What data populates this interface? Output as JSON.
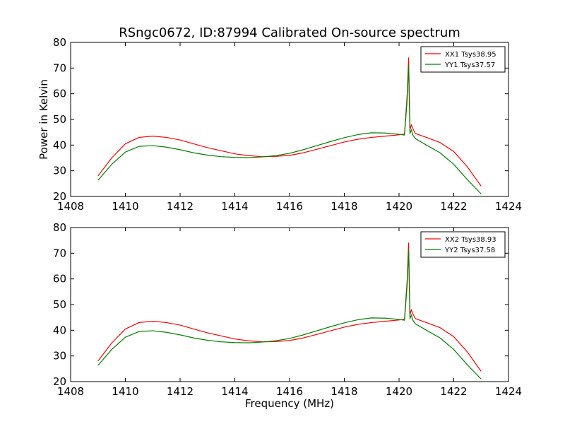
{
  "figure": {
    "title": "RSngc0672, ID:87994 Calibrated On-source spectrum",
    "xlabel": "Frequency (MHz)"
  },
  "chart_data": [
    {
      "type": "line",
      "title": "RSngc0672, ID:87994 Calibrated On-source spectrum",
      "xlabel": "",
      "ylabel": "Power in Kelvin",
      "xlim": [
        1408,
        1424
      ],
      "ylim": [
        20,
        80
      ],
      "xticks": [
        "1408",
        "1410",
        "1412",
        "1414",
        "1416",
        "1418",
        "1420",
        "1422",
        "1424"
      ],
      "yticks": [
        "20",
        "30",
        "40",
        "50",
        "60",
        "70",
        "80"
      ],
      "grid": false,
      "legend_position": "top-right",
      "x": [
        1409.0,
        1409.5,
        1410.0,
        1410.5,
        1411.0,
        1411.5,
        1412.0,
        1412.5,
        1413.0,
        1413.5,
        1414.0,
        1414.5,
        1415.0,
        1415.5,
        1416.0,
        1416.5,
        1417.0,
        1417.5,
        1418.0,
        1418.5,
        1419.0,
        1419.5,
        1420.0,
        1420.2,
        1420.3,
        1420.35,
        1420.4,
        1420.45,
        1420.5,
        1420.6,
        1421.0,
        1421.5,
        1422.0,
        1422.5,
        1423.0
      ],
      "series": [
        {
          "name": "XX1 Tsys38.95",
          "color": "#ff0000",
          "values": [
            28.0,
            35.0,
            40.5,
            43.0,
            43.5,
            43.0,
            42.0,
            40.5,
            39.0,
            37.8,
            36.6,
            35.9,
            35.5,
            35.6,
            36.0,
            37.0,
            38.4,
            39.8,
            41.2,
            42.3,
            43.0,
            43.5,
            44.0,
            44.3,
            60.0,
            74.0,
            46.0,
            48.0,
            46.5,
            44.5,
            43.0,
            41.0,
            37.5,
            31.5,
            24.0
          ]
        },
        {
          "name": "YY1 Tsys37.57",
          "color": "#008000",
          "values": [
            26.3,
            32.5,
            37.3,
            39.5,
            39.8,
            39.2,
            38.2,
            37.0,
            36.1,
            35.5,
            35.2,
            35.1,
            35.4,
            35.9,
            36.8,
            38.2,
            39.8,
            41.4,
            42.9,
            44.1,
            44.8,
            44.7,
            44.2,
            43.9,
            58.0,
            71.0,
            44.5,
            46.0,
            44.0,
            42.5,
            40.0,
            37.0,
            32.5,
            26.5,
            21.0
          ]
        }
      ]
    },
    {
      "type": "line",
      "title": "",
      "xlabel": "Frequency (MHz)",
      "ylabel": "",
      "xlim": [
        1408,
        1424
      ],
      "ylim": [
        20,
        80
      ],
      "xticks": [
        "1408",
        "1410",
        "1412",
        "1414",
        "1416",
        "1418",
        "1420",
        "1422",
        "1424"
      ],
      "yticks": [
        "20",
        "30",
        "40",
        "50",
        "60",
        "70",
        "80"
      ],
      "grid": false,
      "legend_position": "top-right",
      "x": [
        1409.0,
        1409.5,
        1410.0,
        1410.5,
        1411.0,
        1411.5,
        1412.0,
        1412.5,
        1413.0,
        1413.5,
        1414.0,
        1414.5,
        1415.0,
        1415.5,
        1416.0,
        1416.5,
        1417.0,
        1417.5,
        1418.0,
        1418.5,
        1419.0,
        1419.5,
        1420.0,
        1420.2,
        1420.3,
        1420.35,
        1420.4,
        1420.45,
        1420.5,
        1420.6,
        1421.0,
        1421.5,
        1422.0,
        1422.5,
        1423.0
      ],
      "series": [
        {
          "name": "XX2 Tsys38.93",
          "color": "#ff0000",
          "values": [
            28.0,
            35.0,
            40.5,
            43.0,
            43.5,
            43.0,
            42.0,
            40.5,
            39.0,
            37.8,
            36.6,
            35.9,
            35.5,
            35.6,
            36.0,
            37.0,
            38.4,
            39.8,
            41.2,
            42.3,
            43.0,
            43.5,
            44.0,
            44.3,
            60.0,
            74.0,
            46.0,
            48.0,
            46.5,
            44.5,
            43.0,
            41.0,
            37.5,
            31.5,
            24.0
          ]
        },
        {
          "name": "YY2 Tsys37.58",
          "color": "#008000",
          "values": [
            26.3,
            32.5,
            37.3,
            39.5,
            39.8,
            39.2,
            38.2,
            37.0,
            36.1,
            35.5,
            35.2,
            35.1,
            35.4,
            35.9,
            36.8,
            38.2,
            39.8,
            41.4,
            42.9,
            44.1,
            44.8,
            44.7,
            44.2,
            43.9,
            58.0,
            71.0,
            44.5,
            46.0,
            44.0,
            42.5,
            40.0,
            37.0,
            32.5,
            26.5,
            21.0
          ]
        }
      ]
    }
  ]
}
